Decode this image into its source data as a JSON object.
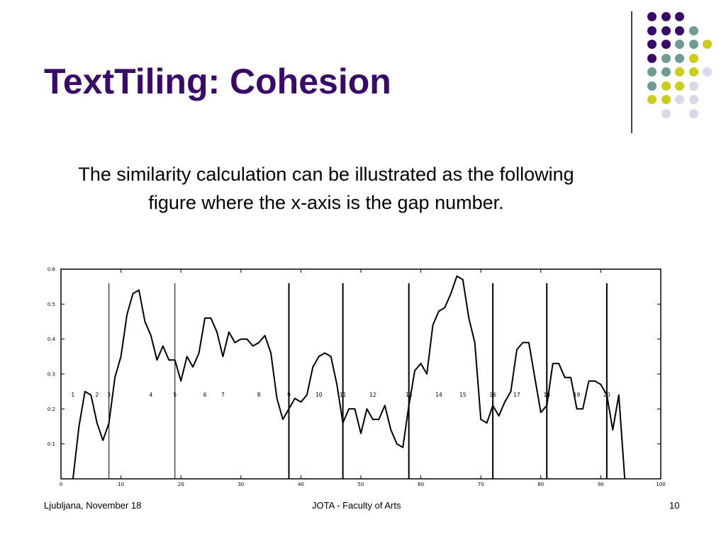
{
  "slide": {
    "title": "TextTiling: Cohesion",
    "body": "The similarity calculation can be illustrated as the following figure where the x-axis is the gap number.",
    "footer_left": "Ljubljana, November 18",
    "footer_center": "JOTA - Faculty of Arts",
    "page_number": "10"
  },
  "decoration": {
    "colors": {
      "purple": "#3a0a6a",
      "teal": "#6e9a98",
      "yellow": "#cccc1a",
      "lavender": "#d8d8e8"
    },
    "dot_grid": [
      [
        "purple",
        "purple",
        "purple",
        "",
        ""
      ],
      [
        "purple",
        "purple",
        "purple",
        "teal",
        ""
      ],
      [
        "purple",
        "purple",
        "teal",
        "teal",
        "yellow"
      ],
      [
        "purple",
        "teal",
        "teal",
        "yellow",
        ""
      ],
      [
        "teal",
        "teal",
        "yellow",
        "yellow",
        "lavender"
      ],
      [
        "teal",
        "yellow",
        "yellow",
        "lavender",
        ""
      ],
      [
        "yellow",
        "yellow",
        "lavender",
        "lavender",
        ""
      ],
      [
        "",
        "lavender",
        "",
        "lavender",
        ""
      ]
    ]
  },
  "chart_data": {
    "type": "line",
    "xlim": [
      0,
      100
    ],
    "ylim": [
      0,
      0.6
    ],
    "x_ticks": [
      0,
      10,
      20,
      30,
      40,
      50,
      60,
      70,
      80,
      90,
      100
    ],
    "y_ticks": [
      0.1,
      0.2,
      0.3,
      0.4,
      0.5,
      0.6
    ],
    "series": [
      {
        "x": [
          2,
          3,
          4,
          5,
          6,
          7,
          8,
          9,
          10,
          11,
          12,
          13,
          14,
          15,
          16,
          17,
          18,
          19,
          20,
          21,
          22,
          23,
          24,
          25,
          26,
          27,
          28,
          29,
          30,
          31,
          32,
          33,
          34,
          35,
          36,
          37,
          38,
          39,
          40,
          41,
          42,
          43,
          44,
          45,
          46,
          47,
          48,
          49,
          50,
          51,
          52,
          53,
          54,
          55,
          56,
          57,
          58,
          59,
          60,
          61,
          62,
          63,
          64,
          65,
          66,
          67,
          68,
          69,
          70,
          71,
          72,
          73,
          74,
          75,
          76,
          77,
          78,
          79,
          80,
          81,
          82,
          83,
          84,
          85,
          86,
          87,
          88,
          89,
          90,
          91,
          92,
          93,
          94
        ],
        "y": [
          0.0,
          0.15,
          0.25,
          0.24,
          0.16,
          0.11,
          0.16,
          0.29,
          0.35,
          0.47,
          0.53,
          0.54,
          0.45,
          0.41,
          0.34,
          0.38,
          0.34,
          0.34,
          0.28,
          0.35,
          0.32,
          0.36,
          0.46,
          0.46,
          0.42,
          0.35,
          0.42,
          0.39,
          0.4,
          0.4,
          0.38,
          0.39,
          0.41,
          0.36,
          0.23,
          0.17,
          0.2,
          0.23,
          0.22,
          0.24,
          0.32,
          0.35,
          0.36,
          0.35,
          0.27,
          0.16,
          0.2,
          0.2,
          0.13,
          0.2,
          0.17,
          0.17,
          0.21,
          0.14,
          0.1,
          0.09,
          0.21,
          0.31,
          0.33,
          0.3,
          0.44,
          0.48,
          0.49,
          0.53,
          0.58,
          0.57,
          0.46,
          0.39,
          0.17,
          0.16,
          0.21,
          0.18,
          0.22,
          0.25,
          0.37,
          0.39,
          0.39,
          0.29,
          0.19,
          0.21,
          0.33,
          0.33,
          0.29,
          0.29,
          0.2,
          0.2,
          0.28,
          0.28,
          0.27,
          0.24,
          0.14,
          0.24,
          0.0
        ]
      }
    ],
    "boundaries": [
      {
        "x": 8,
        "bold": false
      },
      {
        "x": 19,
        "bold": false
      },
      {
        "x": 38,
        "bold": true
      },
      {
        "x": 47,
        "bold": true
      },
      {
        "x": 58,
        "bold": true
      },
      {
        "x": 72,
        "bold": true
      },
      {
        "x": 81,
        "bold": true
      },
      {
        "x": 91,
        "bold": true
      }
    ],
    "segment_labels": [
      {
        "text": "1",
        "x": 2
      },
      {
        "text": "2",
        "x": 6
      },
      {
        "text": "3",
        "x": 8
      },
      {
        "text": "4",
        "x": 15
      },
      {
        "text": "5",
        "x": 19
      },
      {
        "text": "6",
        "x": 24
      },
      {
        "text": "7",
        "x": 27
      },
      {
        "text": "8",
        "x": 33
      },
      {
        "text": "9",
        "x": 38
      },
      {
        "text": "10",
        "x": 43
      },
      {
        "text": "11",
        "x": 47
      },
      {
        "text": "12",
        "x": 52
      },
      {
        "text": "13",
        "x": 58
      },
      {
        "text": "14",
        "x": 63
      },
      {
        "text": "15",
        "x": 67
      },
      {
        "text": "16",
        "x": 72
      },
      {
        "text": "17",
        "x": 76
      },
      {
        "text": "18",
        "x": 81
      },
      {
        "text": "19",
        "x": 86
      },
      {
        "text": "20",
        "x": 91
      }
    ],
    "segment_label_y": 0.24
  }
}
